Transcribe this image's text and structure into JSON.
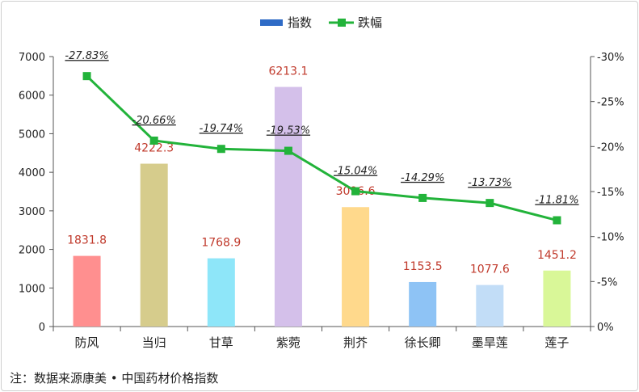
{
  "chart_data": {
    "type": "bar",
    "categories": [
      "防风",
      "当归",
      "甘草",
      "紫菀",
      "荆芥",
      "徐长卿",
      "墨旱莲",
      "莲子"
    ],
    "series": [
      {
        "name": "指数",
        "type": "bar",
        "axis": "left",
        "values": [
          1831.8,
          4222.3,
          1768.9,
          6213.1,
          3096.6,
          1153.5,
          1077.6,
          1451.2
        ],
        "value_labels": [
          "1831.8",
          "4222.3",
          "1768.9",
          "6213.1",
          "3096.6",
          "1153.5",
          "1077.6",
          "1451.2"
        ],
        "colors": [
          "#ff8f8f",
          "#d6cc8c",
          "#8ee6f9",
          "#d4c0ea",
          "#ffd98c",
          "#8ec3f5",
          "#c2ddf7",
          "#d9f798"
        ]
      },
      {
        "name": "跌幅",
        "type": "line",
        "axis": "right",
        "values": [
          -27.83,
          -20.66,
          -19.74,
          -19.53,
          -15.04,
          -14.29,
          -13.73,
          -11.81
        ],
        "value_labels": [
          "-27.83%",
          "-20.66%",
          "-19.74%",
          "-19.53%",
          "-15.04%",
          "-14.29%",
          "-13.73%",
          "-11.81%"
        ],
        "color": "#22b33a"
      }
    ],
    "left_axis": {
      "ylim": [
        0,
        7000
      ],
      "ticks": [
        0,
        1000,
        2000,
        3000,
        4000,
        5000,
        6000,
        7000
      ],
      "tick_labels": [
        "0",
        "1000",
        "2000",
        "3000",
        "4000",
        "5000",
        "6000",
        "7000"
      ]
    },
    "right_axis": {
      "ylim": [
        0,
        -30
      ],
      "ticks": [
        0,
        -5,
        -10,
        -15,
        -20,
        -25,
        -30
      ],
      "tick_labels": [
        "0%",
        "-5%",
        "-10%",
        "-15%",
        "-20%",
        "-25%",
        "-30%"
      ]
    },
    "legend": {
      "placement": "top-center",
      "entries": [
        "指数",
        "跌幅"
      ]
    },
    "grid": false
  },
  "note": "注：数据来源康美 • 中国药材价格指数"
}
